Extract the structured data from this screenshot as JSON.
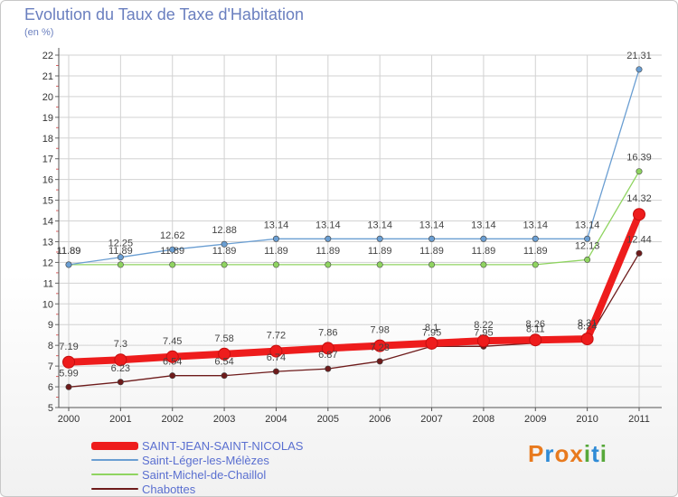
{
  "title": "Evolution du Taux de Taxe d'Habitation",
  "subtitle": "(en %)",
  "brand": {
    "letters": [
      "P",
      "r",
      "o",
      "x",
      "i",
      "t",
      "i"
    ],
    "colors": [
      "#e87a1e",
      "#2f8bd6",
      "#e87a1e",
      "#e87a1e",
      "#57a83a",
      "#2f8bd6",
      "#57a83a"
    ]
  },
  "chart_data": {
    "type": "line",
    "title": "Evolution du Taux de Taxe d'Habitation",
    "ylabel": "(en %)",
    "xlabel": "",
    "x": [
      "2000",
      "2001",
      "2002",
      "2003",
      "2004",
      "2005",
      "2006",
      "2007",
      "2008",
      "2009",
      "2010",
      "2011"
    ],
    "ylim": [
      5,
      22
    ],
    "yticks": [
      "5",
      "6",
      "7",
      "8",
      "9",
      "10",
      "11",
      "12",
      "13",
      "14",
      "15",
      "16",
      "17",
      "18",
      "19",
      "20",
      "21",
      "22"
    ],
    "grid": true,
    "legend_position": "bottom-left",
    "series": [
      {
        "name": "Chabottes",
        "color": "#6e1b1b",
        "values": [
          5.99,
          6.23,
          6.54,
          6.54,
          6.74,
          6.87,
          7.23,
          7.95,
          7.95,
          8.11,
          8.24,
          12.44
        ],
        "labels": [
          "5.99",
          "6.23",
          "6.54",
          "6.54",
          "6.74",
          "6.87",
          "7.23",
          "7.95",
          "7.95",
          "8.11",
          "8.24",
          "12.44"
        ]
      },
      {
        "name": "Saint-Michel-de-Chaillol",
        "color": "#8fd460",
        "values": [
          11.89,
          11.89,
          11.89,
          11.89,
          11.89,
          11.89,
          11.89,
          11.89,
          11.89,
          11.89,
          12.13,
          16.39
        ],
        "labels": [
          "11.89",
          "11.89",
          "11.89",
          "11.89",
          "11.89",
          "11.89",
          "11.89",
          "11.89",
          "11.89",
          "11.89",
          "12.13",
          "16.39"
        ]
      },
      {
        "name": "Saint-Léger-les-Mélèzes",
        "color": "#6a9ed2",
        "values": [
          11.89,
          12.25,
          12.62,
          12.88,
          13.14,
          13.14,
          13.14,
          13.14,
          13.14,
          13.14,
          13.14,
          21.31
        ],
        "labels": [
          "11.89",
          "12.25",
          "12.62",
          "12.88",
          "13.14",
          "13.14",
          "13.14",
          "13.14",
          "13.14",
          "13.14",
          "13.14",
          "21.31"
        ]
      },
      {
        "name": "SAINT-JEAN-SAINT-NICOLAS",
        "color": "#ee1c1c",
        "values": [
          7.19,
          7.3,
          7.45,
          7.58,
          7.72,
          7.86,
          7.98,
          8.1,
          8.22,
          8.26,
          8.31,
          14.32
        ],
        "labels": [
          "7.19",
          "7.3",
          "7.45",
          "7.58",
          "7.72",
          "7.86",
          "7.98",
          "8.1",
          "8.22",
          "8.26",
          "8.31",
          "14.32"
        ]
      }
    ]
  },
  "legend": [
    {
      "label": "SAINT-JEAN-SAINT-NICOLAS",
      "color": "#ee1c1c",
      "thickness": 9
    },
    {
      "label": "Saint-Léger-les-Mélèzes",
      "color": "#6a9ed2",
      "thickness": 2
    },
    {
      "label": "Saint-Michel-de-Chaillol",
      "color": "#8fd460",
      "thickness": 2
    },
    {
      "label": "Chabottes",
      "color": "#6e1b1b",
      "thickness": 2
    }
  ]
}
